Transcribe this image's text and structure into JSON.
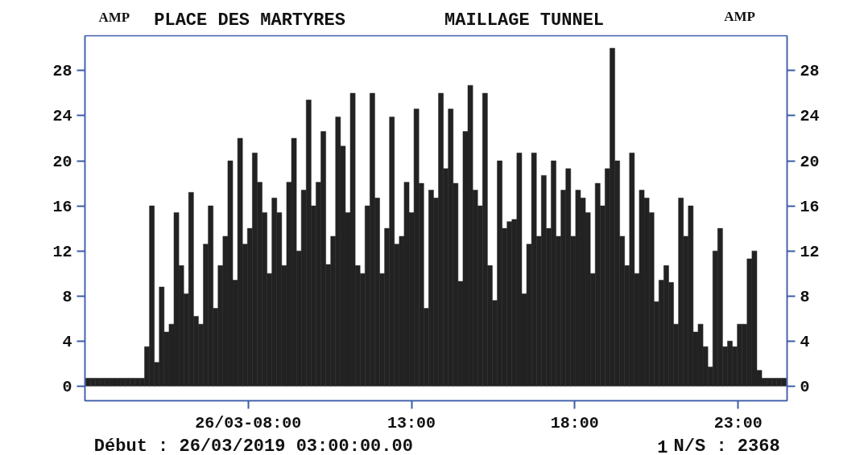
{
  "chart_data": {
    "type": "bar",
    "title": "PLACE DES MARTYRES",
    "subtitle": "MAILLAGE TUNNEL",
    "ylabel": "AMP",
    "y2label": "AMP",
    "annotations": [
      "Début : 26/03/2019 03:00:00.00",
      "1",
      "N/S : 2368"
    ],
    "color": "#222222",
    "x": [
      3.1,
      3.25,
      3.4,
      3.55,
      3.7,
      3.85,
      4,
      4.15,
      4.3,
      4.45,
      4.6,
      4.75,
      4.9,
      5.05,
      5.2,
      5.35,
      5.5,
      5.65,
      5.8,
      5.95,
      6.1,
      6.25,
      6.4,
      6.55,
      6.7,
      6.85,
      7,
      7.15,
      7.3,
      7.45,
      7.6,
      7.75,
      7.9,
      8.05,
      8.2,
      8.35,
      8.5,
      8.65,
      8.8,
      8.95,
      9.1,
      9.25,
      9.4,
      9.55,
      9.7,
      9.85,
      10,
      10.15,
      10.3,
      10.45,
      10.6,
      10.75,
      10.9,
      11.05,
      11.2,
      11.35,
      11.5,
      11.65,
      11.8,
      11.95,
      12.1,
      12.25,
      12.4,
      12.55,
      12.7,
      12.85,
      13,
      13.15,
      13.3,
      13.45,
      13.6,
      13.75,
      13.9,
      14.05,
      14.2,
      14.35,
      14.5,
      14.65,
      14.8,
      14.95,
      15.1,
      15.25,
      15.4,
      15.55,
      15.7,
      15.85,
      16,
      16.15,
      16.3,
      16.45,
      16.6,
      16.75,
      16.9,
      17.05,
      17.2,
      17.35,
      17.5,
      17.65,
      17.8,
      17.95,
      18.1,
      18.25,
      18.4,
      18.55,
      18.7,
      18.85,
      19,
      19.15,
      19.3,
      19.45,
      19.6,
      19.75,
      19.9,
      20.05,
      20.2,
      20.35,
      20.5,
      20.65,
      20.8,
      20.95,
      21.1,
      21.25,
      21.4,
      21.55,
      21.7,
      21.85,
      22,
      22.15,
      22.3,
      22.45,
      22.6,
      22.75,
      22.9,
      23.05,
      23.2,
      23.35,
      23.5,
      23.65,
      23.8,
      23.95,
      24.1,
      24.25,
      24.4
    ],
    "values": [
      0.7,
      0.7,
      0.7,
      0.7,
      0.7,
      0.7,
      0.7,
      0.7,
      0.7,
      0.7,
      0.7,
      0.7,
      3.5,
      16,
      2.1,
      8.8,
      4.8,
      5.5,
      15.4,
      10.7,
      8.2,
      17.2,
      6.2,
      5.5,
      12.6,
      16,
      6.9,
      10.7,
      13.3,
      20,
      9.4,
      22,
      12.6,
      14,
      20.7,
      18.1,
      15.4,
      10,
      16.7,
      15.4,
      10.7,
      18.1,
      22,
      12,
      17.4,
      25.4,
      16,
      18.1,
      22.6,
      10.8,
      13.3,
      23.9,
      21.3,
      15.4,
      26,
      10.7,
      10,
      16,
      26,
      16.7,
      10,
      14,
      23.9,
      12.6,
      13.3,
      18.1,
      15.4,
      24.6,
      18,
      6.9,
      17.4,
      16.7,
      26,
      19.3,
      24.6,
      18,
      9.3,
      22.6,
      26.7,
      17.4,
      16,
      26,
      10.7,
      7.6,
      20,
      14,
      14.6,
      14.8,
      20.7,
      8.2,
      12.6,
      20.7,
      13.3,
      18.7,
      14,
      20,
      13.3,
      17.4,
      19.3,
      13.3,
      17.4,
      16.7,
      15.4,
      10,
      18,
      16,
      19.3,
      30,
      20,
      13.3,
      10.7,
      20.7,
      10,
      17.4,
      16.7,
      15.4,
      7.5,
      9.4,
      10.7,
      9.2,
      5.5,
      16.7,
      13.3,
      16,
      4.8,
      5.5,
      3.5,
      1.7,
      12,
      14,
      3.5,
      4,
      3.5,
      5.5,
      5.5,
      11.3,
      12,
      1.4,
      0.7,
      0.7,
      0.7,
      0.7,
      0.7
    ],
    "xlim": [
      3,
      24.5
    ],
    "xticks": [
      {
        "value": 8,
        "label": "26/03-08:00"
      },
      {
        "value": 13,
        "label": "13:00"
      },
      {
        "value": 18,
        "label": "18:00"
      },
      {
        "value": 23,
        "label": "23:00"
      }
    ],
    "ylim": [
      -1.3,
      31.1
    ],
    "yticks": [
      0,
      4,
      8,
      12,
      16,
      20,
      24,
      28
    ],
    "y2lim": [
      -1.3,
      31.1
    ],
    "y2ticks": [
      0,
      4,
      8,
      12,
      16,
      20,
      24,
      28
    ],
    "grid": false
  }
}
